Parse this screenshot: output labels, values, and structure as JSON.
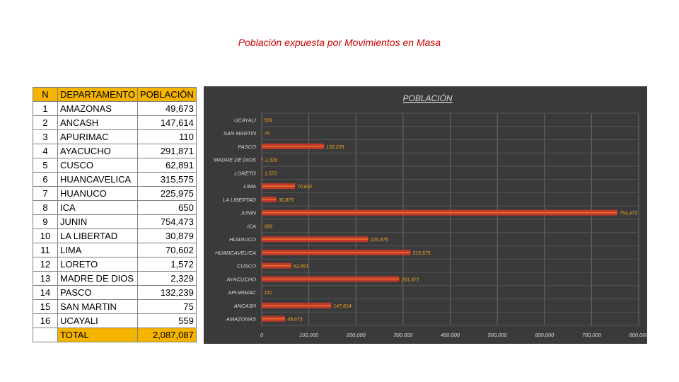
{
  "page_title": "Población expuesta por Movimientos en Masa",
  "table": {
    "headers": {
      "n": "N",
      "departamento": "DEPARTAMENTO",
      "poblacion": "POBLACIÓN"
    },
    "rows": [
      {
        "n": "1",
        "departamento": "AMAZONAS",
        "poblacion": "49,673"
      },
      {
        "n": "2",
        "departamento": "ANCASH",
        "poblacion": "147,614"
      },
      {
        "n": "3",
        "departamento": "APURIMAC",
        "poblacion": "110"
      },
      {
        "n": "4",
        "departamento": "AYACUCHO",
        "poblacion": "291,871"
      },
      {
        "n": "5",
        "departamento": "CUSCO",
        "poblacion": "62,891"
      },
      {
        "n": "6",
        "departamento": "HUANCAVELICA",
        "poblacion": "315,575"
      },
      {
        "n": "7",
        "departamento": "HUANUCO",
        "poblacion": "225,975"
      },
      {
        "n": "8",
        "departamento": "ICA",
        "poblacion": "650"
      },
      {
        "n": "9",
        "departamento": "JUNIN",
        "poblacion": "754,473"
      },
      {
        "n": "10",
        "departamento": "LA LIBERTAD",
        "poblacion": "30,879"
      },
      {
        "n": "11",
        "departamento": "LIMA",
        "poblacion": "70,602"
      },
      {
        "n": "12",
        "departamento": "LORETO",
        "poblacion": "1,572"
      },
      {
        "n": "13",
        "departamento": "MADRE DE DIOS",
        "poblacion": "2,329"
      },
      {
        "n": "14",
        "departamento": "PASCO",
        "poblacion": "132,239"
      },
      {
        "n": "15",
        "departamento": "SAN MARTIN",
        "poblacion": "75"
      },
      {
        "n": "16",
        "departamento": "UCAYALI",
        "poblacion": "559"
      }
    ],
    "total_label": "TOTAL",
    "total_value": "2,087,087"
  },
  "chart_data": {
    "type": "bar",
    "orientation": "horizontal",
    "title": "POBLACIÓN",
    "categories": [
      "UCAYALI",
      "SAN MARTIN",
      "PASCO",
      "MADRE DE DIOS",
      "LORETO",
      "LIMA",
      "LA LIBERTAD",
      "JUNIN",
      "ICA",
      "HUANUCO",
      "HUANCAVELICA",
      "CUSCO",
      "AYACUCHO",
      "APURIMAC",
      "ANCASH",
      "AMAZONAS"
    ],
    "values": [
      559,
      75,
      132239,
      2329,
      1572,
      70602,
      30879,
      754473,
      650,
      225975,
      315575,
      62891,
      291871,
      110,
      147614,
      49673
    ],
    "data_labels": [
      "559",
      "75",
      "132,239",
      "2,329",
      "1,572",
      "70,602",
      "30,879",
      "754,473",
      "650",
      "225,975",
      "315,575",
      "62,891",
      "291,871",
      "110",
      "147,614",
      "49,673"
    ],
    "xlim": [
      0,
      800000
    ],
    "x_ticks": [
      0,
      100000,
      200000,
      300000,
      400000,
      500000,
      600000,
      700000,
      800000
    ],
    "x_tick_labels": [
      "0",
      "100,000",
      "200,000",
      "300,000",
      "400,000",
      "500,000",
      "600,000",
      "700,000",
      "800,000"
    ],
    "grid": true,
    "bar_color": "#c0392b",
    "bar_stripe_color": "#e8732a",
    "label_color": "#f5a623",
    "background": "#3a3a3a"
  }
}
